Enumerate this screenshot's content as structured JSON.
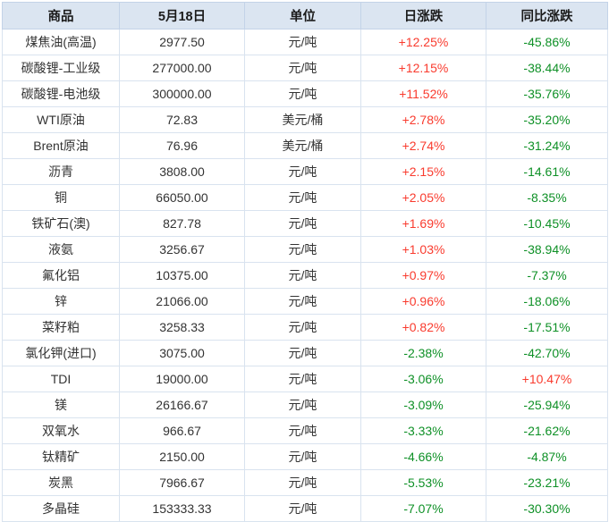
{
  "colors": {
    "header_bg": "#dbe5f1",
    "cell_border": "#ccdaeb",
    "row_border": "#d9e3ef",
    "positive_red": "#f93b2e",
    "negative_green": "#0e9026",
    "text": "#333333"
  },
  "chart_data": {
    "type": "table",
    "columns": [
      "商品",
      "5月18日",
      "单位",
      "日涨跌",
      "同比涨跌"
    ],
    "rows": [
      [
        "煤焦油(高温)",
        "2977.50",
        "元/吨",
        "+12.25%",
        "-45.86%"
      ],
      [
        "碳酸锂-工业级",
        "277000.00",
        "元/吨",
        "+12.15%",
        "-38.44%"
      ],
      [
        "碳酸锂-电池级",
        "300000.00",
        "元/吨",
        "+11.52%",
        "-35.76%"
      ],
      [
        "WTI原油",
        "72.83",
        "美元/桶",
        "+2.78%",
        "-35.20%"
      ],
      [
        "Brent原油",
        "76.96",
        "美元/桶",
        "+2.74%",
        "-31.24%"
      ],
      [
        "沥青",
        "3808.00",
        "元/吨",
        "+2.15%",
        "-14.61%"
      ],
      [
        "铜",
        "66050.00",
        "元/吨",
        "+2.05%",
        "-8.35%"
      ],
      [
        "铁矿石(澳)",
        "827.78",
        "元/吨",
        "+1.69%",
        "-10.45%"
      ],
      [
        "液氨",
        "3256.67",
        "元/吨",
        "+1.03%",
        "-38.94%"
      ],
      [
        "氟化铝",
        "10375.00",
        "元/吨",
        "+0.97%",
        "-7.37%"
      ],
      [
        "锌",
        "21066.00",
        "元/吨",
        "+0.96%",
        "-18.06%"
      ],
      [
        "菜籽粕",
        "3258.33",
        "元/吨",
        "+0.82%",
        "-17.51%"
      ],
      [
        "氯化钾(进口)",
        "3075.00",
        "元/吨",
        "-2.38%",
        "-42.70%"
      ],
      [
        "TDI",
        "19000.00",
        "元/吨",
        "-3.06%",
        "+10.47%"
      ],
      [
        "镁",
        "26166.67",
        "元/吨",
        "-3.09%",
        "-25.94%"
      ],
      [
        "双氧水",
        "966.67",
        "元/吨",
        "-3.33%",
        "-21.62%"
      ],
      [
        "钛精矿",
        "2150.00",
        "元/吨",
        "-4.66%",
        "-4.87%"
      ],
      [
        "炭黑",
        "7966.67",
        "元/吨",
        "-5.53%",
        "-23.21%"
      ],
      [
        "多晶硅",
        "153333.33",
        "元/吨",
        "-7.07%",
        "-30.30%"
      ]
    ]
  }
}
